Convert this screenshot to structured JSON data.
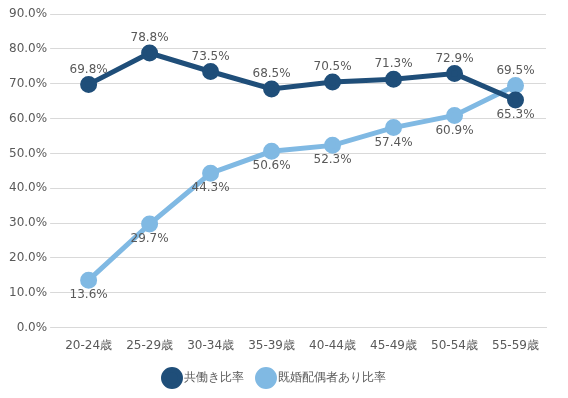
{
  "chart_data": {
    "type": "line",
    "categories": [
      "20-24歳",
      "25-29歳",
      "30-34歳",
      "35-39歳",
      "40-44歳",
      "45-49歳",
      "50-54歳",
      "55-59歳"
    ],
    "series": [
      {
        "name": "共働き比率",
        "color": "#1f4e79",
        "values": [
          69.8,
          78.8,
          73.5,
          68.5,
          70.5,
          71.3,
          72.9,
          65.3
        ],
        "value_labels": [
          "69.8%",
          "78.8%",
          "73.5%",
          "68.5%",
          "70.5%",
          "71.3%",
          "72.9%",
          "65.3%"
        ]
      },
      {
        "name": "既婚配偶者あり比率",
        "color": "#80b9e3",
        "values": [
          13.6,
          29.7,
          44.3,
          50.6,
          52.3,
          57.4,
          60.9,
          69.5
        ],
        "value_labels": [
          "13.6%",
          "29.7%",
          "44.3%",
          "50.6%",
          "52.3%",
          "57.4%",
          "60.9%",
          "69.5%"
        ]
      }
    ],
    "ylim": [
      0,
      90
    ],
    "yticks": [
      {
        "value": 0,
        "label": "0.0%"
      },
      {
        "value": 10,
        "label": "10.0%"
      },
      {
        "value": 20,
        "label": "20.0%"
      },
      {
        "value": 30,
        "label": "30.0%"
      },
      {
        "value": 40,
        "label": "40.0%"
      },
      {
        "value": 50,
        "label": "50.0%"
      },
      {
        "value": 60,
        "label": "60.0%"
      },
      {
        "value": 70,
        "label": "70.0%"
      },
      {
        "value": 80,
        "label": "80.0%"
      },
      {
        "value": 90,
        "label": "90.0%"
      }
    ],
    "grid": true,
    "legend": "bottom",
    "data_labels": true,
    "marker": "circle"
  }
}
